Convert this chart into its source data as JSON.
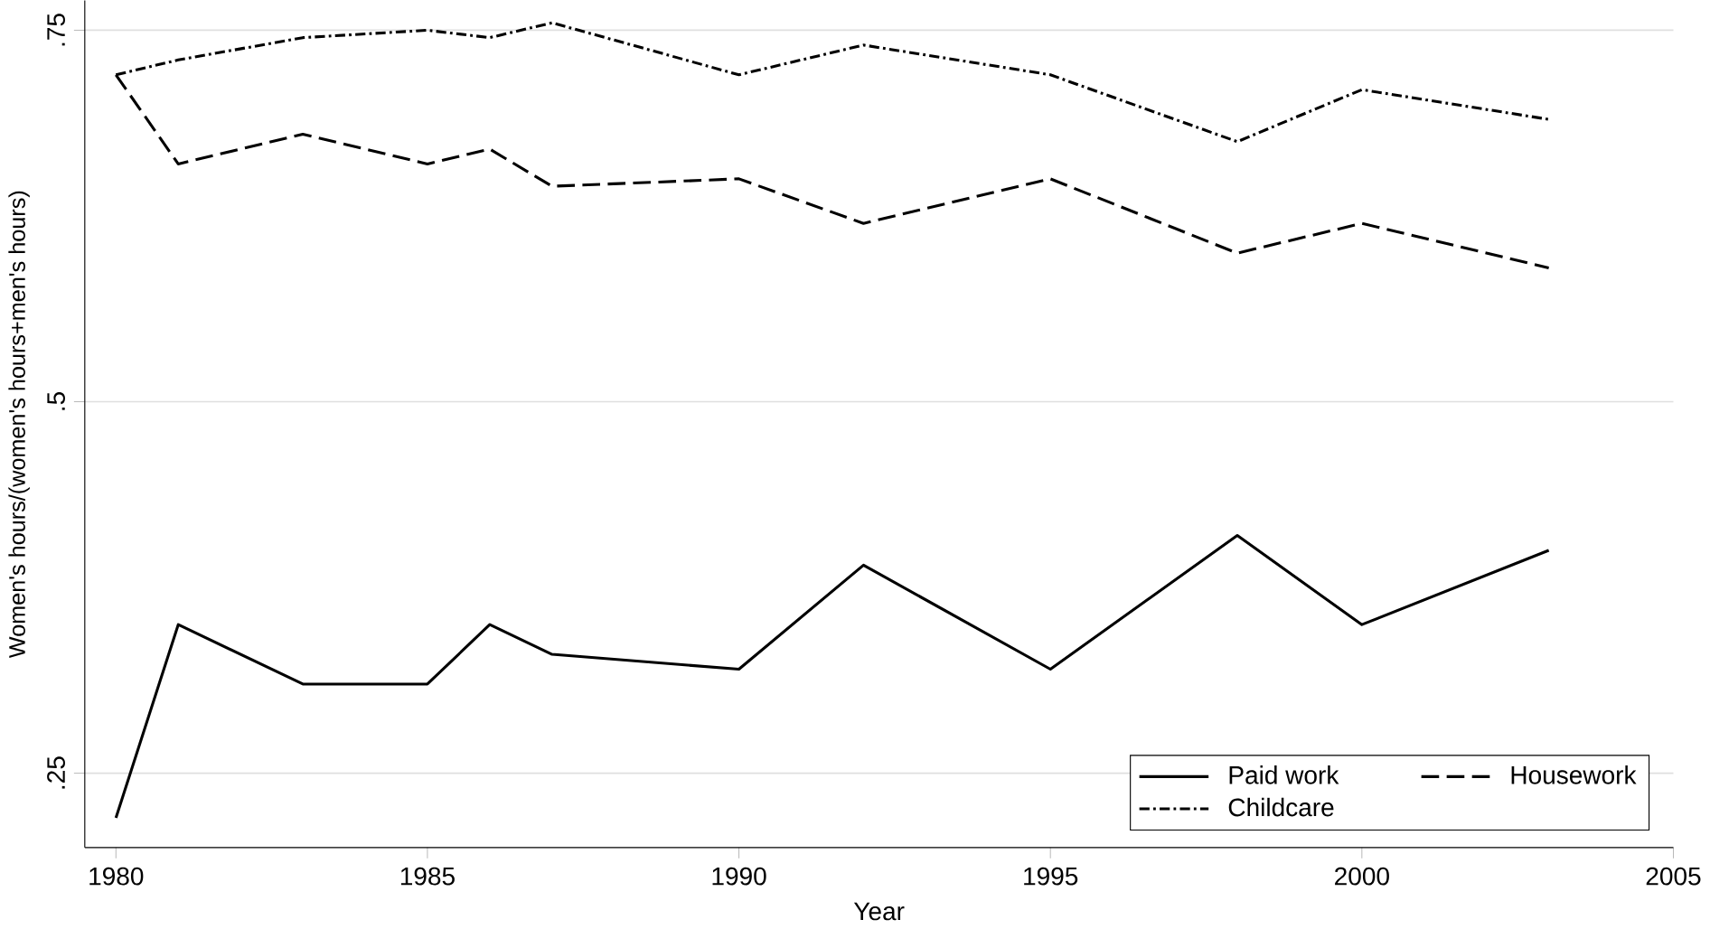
{
  "chart_data": {
    "type": "line",
    "xlabel": "Year",
    "ylabel": "Women's hours/(women's hours+men's hours)",
    "xlim": [
      1979.5,
      2005
    ],
    "ylim": [
      0.2,
      0.77
    ],
    "xticks": [
      1980,
      1985,
      1990,
      1995,
      2000,
      2005
    ],
    "yticks": [
      {
        "value": 0.25,
        "label": ".25"
      },
      {
        "value": 0.5,
        "label": ".5"
      },
      {
        "value": 0.75,
        "label": ".75"
      }
    ],
    "grid": "y",
    "legend": "bottom right",
    "marker": "none",
    "x": [
      1980,
      1981,
      1983,
      1985,
      1986,
      1987,
      1990,
      1992,
      1995,
      1998,
      2000,
      2003
    ],
    "series": [
      {
        "name": "Paid work",
        "color": "#000000",
        "line_style": "solid",
        "values": [
          0.22,
          0.35,
          0.31,
          0.31,
          0.35,
          0.33,
          0.32,
          0.39,
          0.32,
          0.41,
          0.35,
          0.4
        ]
      },
      {
        "name": "Housework",
        "color": "#000000",
        "line_style": "dashed",
        "values": [
          0.72,
          0.66,
          0.68,
          0.66,
          0.67,
          0.645,
          0.65,
          0.62,
          0.65,
          0.6,
          0.62,
          0.59
        ]
      },
      {
        "name": "Childcare",
        "color": "#000000",
        "line_style": "dashdotted",
        "values": [
          0.72,
          0.73,
          0.745,
          0.75,
          0.745,
          0.755,
          0.72,
          0.74,
          0.72,
          0.675,
          0.71,
          0.69
        ]
      }
    ]
  }
}
